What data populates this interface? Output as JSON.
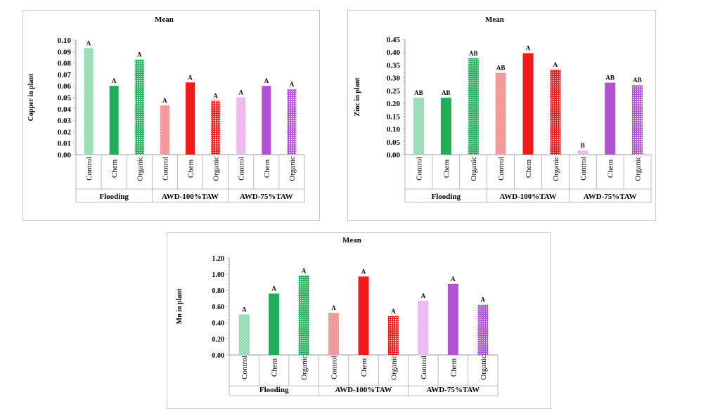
{
  "colors": {
    "flooding_light": "#7fd6a4",
    "flooding_dark": "#1fae58",
    "awd100_light": "#f67f7f",
    "awd100_dark": "#f01a1a",
    "awd75_light": "#e9a8ea",
    "awd75_dark": "#b251d2"
  },
  "chart_data": [
    {
      "type": "bar",
      "title": "Mean",
      "ylabel": "Copper in plant",
      "xlabel": "",
      "ylim": [
        0,
        0.1
      ],
      "yticks": [
        "0.00",
        "0.01",
        "0.02",
        "0.03",
        "0.04",
        "0.05",
        "0.06",
        "0.07",
        "0.08",
        "0.09",
        "0.10"
      ],
      "groups": [
        "Flooding",
        "AWD-100%TAW",
        "AWD-75%TAW"
      ],
      "categories": [
        "Control",
        "Chem",
        "Organic",
        "Control",
        "Chem",
        "Organic",
        "Control",
        "Chem",
        "Organic"
      ],
      "values": [
        0.093,
        0.06,
        0.083,
        0.043,
        0.063,
        0.047,
        0.05,
        0.06,
        0.057
      ],
      "letters": [
        "A",
        "A",
        "A",
        "A",
        "A",
        "A",
        "A",
        "A",
        "A"
      ],
      "grid": false
    },
    {
      "type": "bar",
      "title": "Mean",
      "ylabel": "Zinc in plant",
      "xlabel": "",
      "ylim": [
        0,
        0.45
      ],
      "yticks": [
        "0.00",
        "0.05",
        "0.10",
        "0.15",
        "0.20",
        "0.25",
        "0.30",
        "0.35",
        "0.40",
        "0.45"
      ],
      "groups": [
        "Flooding",
        "AWD-100%TAW",
        "AWD-75%TAW"
      ],
      "categories": [
        "Control",
        "Chem",
        "Organic",
        "Control",
        "Chem",
        "Organic",
        "Control",
        "Chem",
        "Organic"
      ],
      "values": [
        0.222,
        0.222,
        0.376,
        0.319,
        0.396,
        0.332,
        0.016,
        0.281,
        0.271
      ],
      "letters": [
        "AB",
        "AB",
        "AB",
        "AB",
        "A",
        "A",
        "B",
        "AB",
        "AB"
      ],
      "grid": false
    },
    {
      "type": "bar",
      "title": "Mean",
      "ylabel": "Mn in plant",
      "xlabel": "",
      "ylim": [
        0,
        1.2
      ],
      "yticks": [
        "0.00",
        "0.20",
        "0.40",
        "0.60",
        "0.80",
        "1.00",
        "1.20"
      ],
      "groups": [
        "Flooding",
        "AWD-100%TAW",
        "AWD-75%TAW"
      ],
      "categories": [
        "Control",
        "Chem",
        "Organic",
        "Control",
        "Chem",
        "Organic",
        "Control",
        "Chem",
        "Organic"
      ],
      "values": [
        0.5,
        0.76,
        0.98,
        0.52,
        0.97,
        0.48,
        0.67,
        0.88,
        0.62
      ],
      "letters": [
        "A",
        "A",
        "A",
        "A",
        "A",
        "A",
        "A",
        "A",
        "A"
      ],
      "grid": false
    }
  ]
}
